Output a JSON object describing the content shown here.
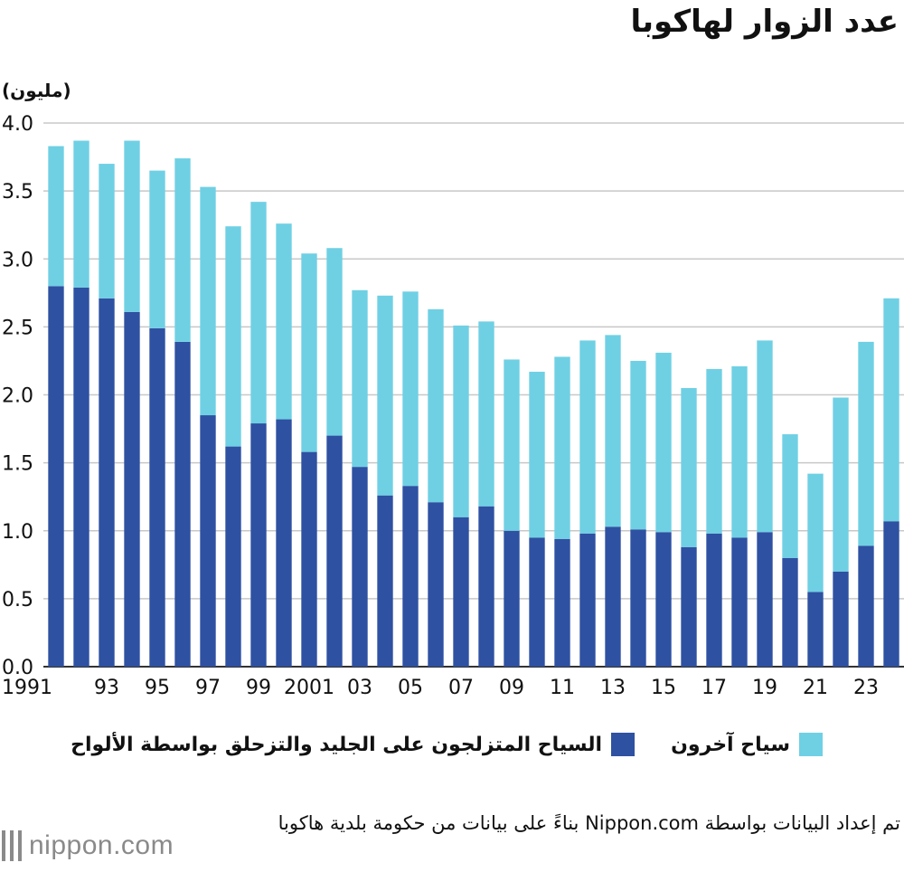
{
  "chart_data": {
    "type": "bar",
    "stacked": true,
    "title": "عدد الزوار لهاكوبا",
    "ylabel": "(مليون)",
    "xlabel": "",
    "ylim": [
      0,
      4.0
    ],
    "yticks": [
      "0.0",
      "0.5",
      "1.0",
      "1.5",
      "2.0",
      "2.5",
      "3.0",
      "3.5",
      "4.0"
    ],
    "grid": true,
    "categories": [
      "1991",
      "1992",
      "1993",
      "1994",
      "1995",
      "1996",
      "1997",
      "1998",
      "1999",
      "2000",
      "2001",
      "2002",
      "2003",
      "2004",
      "2005",
      "2006",
      "2007",
      "2008",
      "2009",
      "2010",
      "2011",
      "2012",
      "2013",
      "2014",
      "2015",
      "2016",
      "2017",
      "2018",
      "2019",
      "2020",
      "2021",
      "2022",
      "2023",
      "2024"
    ],
    "xtick_labels": [
      "1991",
      "",
      "93",
      "",
      "95",
      "",
      "97",
      "",
      "99",
      "",
      "2001",
      "",
      "03",
      "",
      "05",
      "",
      "07",
      "",
      "09",
      "",
      "11",
      "",
      "13",
      "",
      "15",
      "",
      "17",
      "",
      "19",
      "",
      "21",
      "",
      "23",
      ""
    ],
    "series": [
      {
        "name": "السياح المتزلجون على الجليد والتزحلق بواسطة الألواح",
        "color": "#2e51a2",
        "values": [
          2.8,
          2.79,
          2.71,
          2.61,
          2.49,
          2.39,
          1.85,
          1.62,
          1.79,
          1.82,
          1.58,
          1.7,
          1.47,
          1.26,
          1.33,
          1.21,
          1.1,
          1.18,
          1.0,
          0.95,
          0.94,
          0.98,
          1.03,
          1.01,
          0.99,
          0.88,
          0.98,
          0.95,
          0.99,
          0.8,
          0.55,
          0.7,
          0.89,
          1.07
        ]
      },
      {
        "name": "سياح آخرون",
        "color": "#6fd0e4",
        "values": [
          1.03,
          1.08,
          0.99,
          1.26,
          1.16,
          1.35,
          1.68,
          1.62,
          1.63,
          1.44,
          1.46,
          1.38,
          1.3,
          1.47,
          1.43,
          1.42,
          1.41,
          1.36,
          1.26,
          1.22,
          1.34,
          1.42,
          1.41,
          1.24,
          1.32,
          1.17,
          1.21,
          1.26,
          1.41,
          0.91,
          0.87,
          1.28,
          1.5,
          1.64
        ]
      }
    ]
  },
  "legend": {
    "skiers_label": "السياح المتزلجون على الجليد والتزحلق بواسطة الألواح",
    "others_label": "سياح آخرون"
  },
  "footer": {
    "source": "تم إعداد البيانات بواسطة Nippon.com بناءً على بيانات من حكومة بلدية هاكوبا",
    "logo_text": "nippon.com"
  }
}
